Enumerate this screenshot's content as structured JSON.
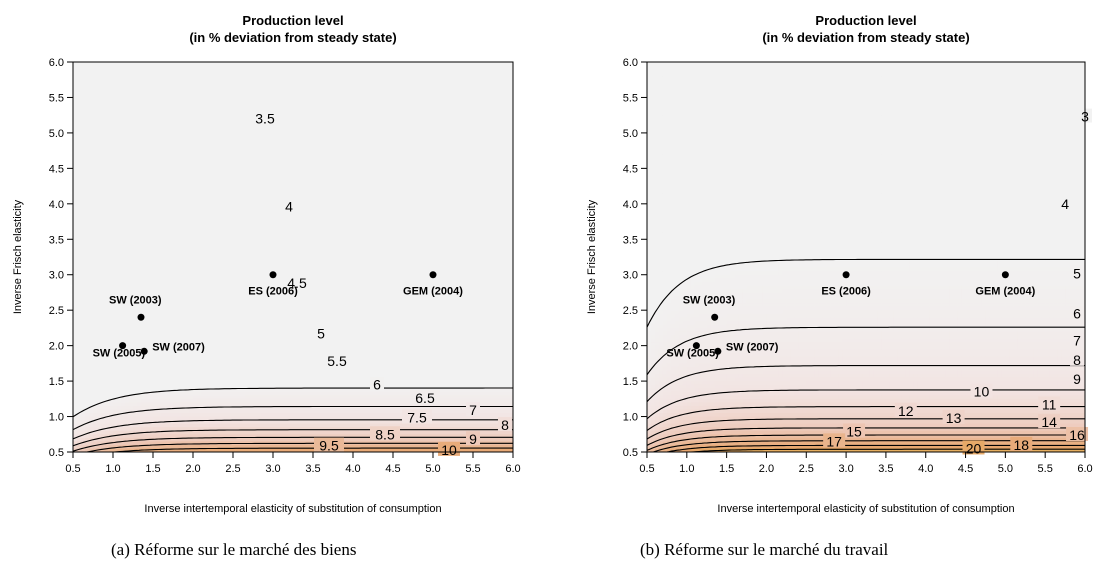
{
  "colors": {
    "contour_line": "#000000",
    "point": "#000000",
    "gradient": [
      "#f2f2f2",
      "#f2e4e2",
      "#edc8b8",
      "#e7a66e",
      "#e0c23a",
      "#a0c81c",
      "#4f9e0a"
    ]
  },
  "chart_data": [
    {
      "type": "contour",
      "title": "Production level",
      "subtitle": "(in % deviation from steady state)",
      "xlabel": "Inverse intertemporal elasticity of substitution of consumption",
      "ylabel": "Inverse Frisch elasticity",
      "xlim": [
        0.5,
        6.0
      ],
      "ylim": [
        0.5,
        6.0
      ],
      "x_ticks": [
        "0.5",
        "1.0",
        "1.5",
        "2.0",
        "2.5",
        "3.0",
        "3.5",
        "4.0",
        "4.5",
        "5.0",
        "5.5",
        "6.0"
      ],
      "y_ticks": [
        "0.5",
        "1.0",
        "1.5",
        "2.0",
        "2.5",
        "3.0",
        "3.5",
        "4.0",
        "4.5",
        "5.0",
        "5.5",
        "6.0"
      ],
      "contour_levels": [
        3.5,
        4,
        4.5,
        5,
        5.5,
        6,
        6.5,
        7,
        7.5,
        8,
        8.5,
        9,
        9.5,
        10
      ],
      "contour_labels": [
        {
          "level": "3.5",
          "x": 2.9,
          "y": 5.2
        },
        {
          "level": "4",
          "x": 3.2,
          "y": 3.96
        },
        {
          "level": "4.5",
          "x": 3.3,
          "y": 2.88
        },
        {
          "level": "5",
          "x": 3.6,
          "y": 2.17
        },
        {
          "level": "5.5",
          "x": 3.8,
          "y": 1.78
        },
        {
          "level": "6",
          "x": 4.3,
          "y": 1.45
        },
        {
          "level": "6.5",
          "x": 4.9,
          "y": 1.26
        },
        {
          "level": "7",
          "x": 5.5,
          "y": 1.09
        },
        {
          "level": "7.5",
          "x": 4.8,
          "y": 0.99
        },
        {
          "level": "8",
          "x": 5.9,
          "y": 0.88
        },
        {
          "level": "8.5",
          "x": 4.4,
          "y": 0.75
        },
        {
          "level": "9",
          "x": 5.5,
          "y": 0.68
        },
        {
          "level": "9.5",
          "x": 3.7,
          "y": 0.59
        },
        {
          "level": "10",
          "x": 5.2,
          "y": 0.53
        }
      ],
      "points": [
        {
          "label": "SW (2003)",
          "x": 1.35,
          "y": 2.4
        },
        {
          "label": "SW (2005)",
          "x": 1.12,
          "y": 2.0
        },
        {
          "label": "SW (2007)",
          "x": 1.39,
          "y": 1.92
        },
        {
          "label": "ES (2006)",
          "x": 3.0,
          "y": 3.0
        },
        {
          "label": "GEM (2004)",
          "x": 5.0,
          "y": 3.0
        }
      ],
      "caption": "(a) Réforme sur le marché des biens"
    },
    {
      "type": "contour",
      "title": "Production level",
      "subtitle": "(in % deviation from steady state)",
      "xlabel": "Inverse intertemporal elasticity of substitution of consumption",
      "ylabel": "Inverse Frisch elasticity",
      "xlim": [
        0.5,
        6.0
      ],
      "ylim": [
        0.5,
        6.0
      ],
      "x_ticks": [
        "0.5",
        "1.0",
        "1.5",
        "2.0",
        "2.5",
        "3.0",
        "3.5",
        "4.0",
        "4.5",
        "5.0",
        "5.5",
        "6.0"
      ],
      "y_ticks": [
        "0.5",
        "1.0",
        "1.5",
        "2.0",
        "2.5",
        "3.0",
        "3.5",
        "4.0",
        "4.5",
        "5.0",
        "5.5",
        "6.0"
      ],
      "contour_levels": [
        3,
        4,
        5,
        6,
        7,
        8,
        9,
        10,
        11,
        12,
        13,
        14,
        15,
        16,
        17,
        18,
        20
      ],
      "contour_labels": [
        {
          "level": "3",
          "x": 6.0,
          "y": 5.23
        },
        {
          "level": "4",
          "x": 5.75,
          "y": 4.0
        },
        {
          "level": "5",
          "x": 5.9,
          "y": 3.02
        },
        {
          "level": "6",
          "x": 5.9,
          "y": 2.45
        },
        {
          "level": "7",
          "x": 5.9,
          "y": 2.07
        },
        {
          "level": "8",
          "x": 5.9,
          "y": 1.8
        },
        {
          "level": "9",
          "x": 5.9,
          "y": 1.53
        },
        {
          "level": "10",
          "x": 4.7,
          "y": 1.35
        },
        {
          "level": "11",
          "x": 5.55,
          "y": 1.17
        },
        {
          "level": "12",
          "x": 3.75,
          "y": 1.08
        },
        {
          "level": "13",
          "x": 4.35,
          "y": 0.98
        },
        {
          "level": "14",
          "x": 5.55,
          "y": 0.92
        },
        {
          "level": "15",
          "x": 3.1,
          "y": 0.79
        },
        {
          "level": "16",
          "x": 5.9,
          "y": 0.74
        },
        {
          "level": "17",
          "x": 2.85,
          "y": 0.65
        },
        {
          "level": "18",
          "x": 5.2,
          "y": 0.6
        },
        {
          "level": "20",
          "x": 4.6,
          "y": 0.55
        }
      ],
      "points": [
        {
          "label": "SW (2003)",
          "x": 1.35,
          "y": 2.4
        },
        {
          "label": "SW (2005)",
          "x": 1.12,
          "y": 2.0
        },
        {
          "label": "SW (2007)",
          "x": 1.39,
          "y": 1.92
        },
        {
          "label": "ES (2006)",
          "x": 3.0,
          "y": 3.0
        },
        {
          "label": "GEM (2004)",
          "x": 5.0,
          "y": 3.0
        }
      ],
      "caption": "(b) Réforme sur le marché du travail"
    }
  ]
}
